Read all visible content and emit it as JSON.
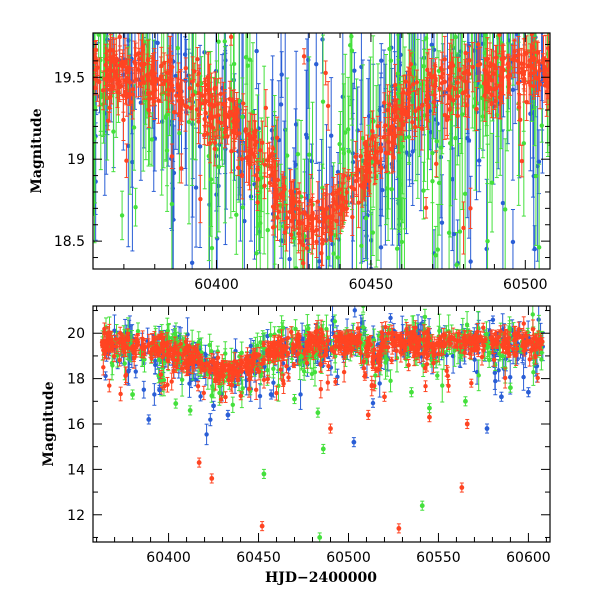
{
  "chart_data": [
    {
      "type": "scatter",
      "panel": "top",
      "xlabel": "",
      "ylabel": "Magnitude",
      "xlim": [
        60360,
        60508
      ],
      "ylim": [
        19.77,
        18.33
      ],
      "y_inverted": true,
      "x_ticks": [
        60400,
        60450,
        60500
      ],
      "x_tick_labels": [
        "60400",
        "60450",
        "60500"
      ],
      "y_ticks": [
        18.5,
        19,
        19.5
      ],
      "y_tick_labels": [
        "18.5",
        "19",
        "19.5"
      ],
      "error_bars": true,
      "series_colors": [
        "#2a5ed6",
        "#44e03c",
        "#ff4422"
      ],
      "light_curve_shape": {
        "x": [
          60360,
          60375,
          60390,
          60400,
          60410,
          60420,
          60428,
          60433,
          60440,
          60450,
          60460,
          60470,
          60480,
          60490,
          60500,
          60508
        ],
        "y": [
          19.55,
          19.5,
          19.4,
          19.3,
          19.1,
          18.82,
          18.62,
          18.6,
          18.72,
          19.0,
          19.3,
          19.45,
          19.5,
          19.52,
          19.55,
          19.55
        ]
      },
      "outlier_magnitudes": [
        18.4,
        18.6,
        19.7,
        18.45,
        19.6,
        18.5,
        18.7,
        19.7
      ]
    },
    {
      "type": "scatter",
      "panel": "bottom",
      "xlabel": "HJD−2400000",
      "ylabel": "Magnitude",
      "xlim": [
        60358,
        60612
      ],
      "ylim": [
        21.2,
        10.8
      ],
      "y_inverted": true,
      "x_ticks": [
        60400,
        60450,
        60500,
        60550,
        60600
      ],
      "x_tick_labels": [
        "60400",
        "60450",
        "60500",
        "60550",
        "60600"
      ],
      "y_ticks": [
        12,
        14,
        16,
        18,
        20
      ],
      "y_tick_labels": [
        "12",
        "14",
        "16",
        "18",
        "20"
      ],
      "error_bars": true,
      "series_colors": [
        "#2a5ed6",
        "#44e03c",
        "#ff4422"
      ],
      "baseline_magnitude": 19.6,
      "outliers": [
        {
          "series": 2,
          "x": 60452,
          "y": 11.5
        },
        {
          "series": 1,
          "x": 60484,
          "y": 11.0
        },
        {
          "series": 2,
          "x": 60528,
          "y": 11.4
        },
        {
          "series": 1,
          "x": 60541,
          "y": 12.4
        },
        {
          "series": 2,
          "x": 60563,
          "y": 13.2
        },
        {
          "series": 2,
          "x": 60424,
          "y": 13.6
        },
        {
          "series": 1,
          "x": 60453,
          "y": 13.8
        },
        {
          "series": 2,
          "x": 60417,
          "y": 14.3
        },
        {
          "series": 1,
          "x": 60486,
          "y": 14.9
        },
        {
          "series": 0,
          "x": 60503,
          "y": 15.2
        },
        {
          "series": 2,
          "x": 60490,
          "y": 15.8
        },
        {
          "series": 0,
          "x": 60577,
          "y": 15.8
        },
        {
          "series": 2,
          "x": 60566,
          "y": 16.0
        },
        {
          "series": 2,
          "x": 60545,
          "y": 16.3
        },
        {
          "series": 0,
          "x": 60389,
          "y": 16.2
        },
        {
          "series": 1,
          "x": 60412,
          "y": 16.6
        },
        {
          "series": 0,
          "x": 60433,
          "y": 16.4
        },
        {
          "series": 1,
          "x": 60545,
          "y": 16.7
        },
        {
          "series": 2,
          "x": 60511,
          "y": 16.4
        },
        {
          "series": 1,
          "x": 60483,
          "y": 16.5
        },
        {
          "series": 1,
          "x": 60404,
          "y": 16.9
        },
        {
          "series": 0,
          "x": 60425,
          "y": 16.8
        },
        {
          "series": 1,
          "x": 60565,
          "y": 17.0
        },
        {
          "series": 0,
          "x": 60585,
          "y": 17.2
        },
        {
          "series": 1,
          "x": 60380,
          "y": 17.3
        },
        {
          "series": 0,
          "x": 60395,
          "y": 17.5
        },
        {
          "series": 2,
          "x": 60520,
          "y": 17.2
        },
        {
          "series": 1,
          "x": 60590,
          "y": 17.6
        },
        {
          "series": 0,
          "x": 60600,
          "y": 17.4
        },
        {
          "series": 1,
          "x": 60470,
          "y": 17.1
        },
        {
          "series": 0,
          "x": 60457,
          "y": 17.3
        },
        {
          "series": 1,
          "x": 60535,
          "y": 17.4
        }
      ]
    }
  ]
}
